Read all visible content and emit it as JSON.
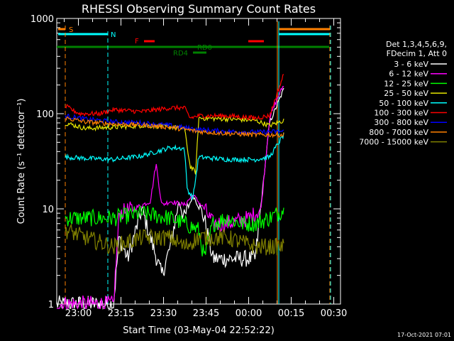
{
  "chart_data": {
    "type": "line",
    "title": "RHESSI Observing Summary Count Rates",
    "xlabel": "Start Time (03-May-04 22:52:22)",
    "ylabel": "Count Rate (s⁻¹ detector⁻¹)",
    "yscale": "log",
    "ylim": [
      1,
      1000
    ],
    "xlim_minutes_from_22:52:22": [
      0,
      100
    ],
    "x_ticks": [
      "23:00",
      "23:15",
      "23:30",
      "23:45",
      "00:00",
      "00:15",
      "00:30"
    ],
    "y_ticks": [
      "1",
      "10",
      "100",
      "1000"
    ],
    "legend_header": [
      "Det 1,3,4,5,6,9,",
      "FDecim 1, Att 0"
    ],
    "legend_position": "right",
    "footer_date": "17-Oct-2021 07:01",
    "flags": [
      {
        "label": "S",
        "color": "#ff8000"
      },
      {
        "label": "N",
        "color": "#00ffff"
      },
      {
        "label": "F",
        "color": "#ff0000"
      },
      {
        "label": "RD0",
        "color": "#008000"
      },
      {
        "label": "RD4",
        "color": "#008000"
      }
    ],
    "series": [
      {
        "name": "3 - 6 keV",
        "color": "#ffffff",
        "approx_points": [
          [
            0,
            1
          ],
          [
            20,
            1
          ],
          [
            22,
            5
          ],
          [
            25,
            3
          ],
          [
            30,
            10
          ],
          [
            33,
            5
          ],
          [
            37,
            2
          ],
          [
            40,
            4
          ],
          [
            43,
            12
          ],
          [
            45,
            8
          ],
          [
            48,
            14
          ],
          [
            52,
            8
          ],
          [
            55,
            3
          ],
          [
            60,
            3
          ],
          [
            65,
            3
          ],
          [
            70,
            3
          ],
          [
            75,
            80
          ],
          [
            78,
            130
          ],
          [
            80,
            180
          ]
        ]
      },
      {
        "name": "6 - 12 keV",
        "color": "#ff00ff",
        "approx_points": [
          [
            0,
            1
          ],
          [
            20,
            1
          ],
          [
            22,
            9
          ],
          [
            27,
            10
          ],
          [
            33,
            12
          ],
          [
            35,
            30
          ],
          [
            37,
            11
          ],
          [
            40,
            12
          ],
          [
            45,
            11
          ],
          [
            48,
            14
          ],
          [
            52,
            10
          ],
          [
            55,
            7
          ],
          [
            60,
            7
          ],
          [
            68,
            8
          ],
          [
            72,
            10
          ],
          [
            75,
            90
          ],
          [
            78,
            150
          ],
          [
            80,
            200
          ]
        ]
      },
      {
        "name": "12 - 25 keV",
        "color": "#00ff00",
        "approx_points": [
          [
            3,
            8
          ],
          [
            10,
            8
          ],
          [
            20,
            8
          ],
          [
            30,
            9
          ],
          [
            40,
            8
          ],
          [
            45,
            7
          ],
          [
            50,
            6
          ],
          [
            52,
            3
          ],
          [
            55,
            7
          ],
          [
            60,
            8
          ],
          [
            65,
            7
          ],
          [
            70,
            7
          ],
          [
            75,
            8
          ],
          [
            78,
            9
          ],
          [
            80,
            10
          ]
        ]
      },
      {
        "name": "25 - 50 keV",
        "color": "#e6e600",
        "approx_points": [
          [
            3,
            80
          ],
          [
            10,
            70
          ],
          [
            20,
            72
          ],
          [
            30,
            75
          ],
          [
            40,
            73
          ],
          [
            45,
            70
          ],
          [
            47,
            28
          ],
          [
            49,
            24
          ],
          [
            50,
            90
          ],
          [
            60,
            88
          ],
          [
            70,
            85
          ],
          [
            75,
            75
          ],
          [
            80,
            85
          ]
        ]
      },
      {
        "name": "50 - 100 keV",
        "color": "#00ffff",
        "approx_points": [
          [
            3,
            35
          ],
          [
            10,
            34
          ],
          [
            20,
            33
          ],
          [
            30,
            36
          ],
          [
            40,
            44
          ],
          [
            45,
            43
          ],
          [
            46,
            16
          ],
          [
            48,
            13
          ],
          [
            50,
            35
          ],
          [
            60,
            33
          ],
          [
            70,
            33
          ],
          [
            75,
            35
          ],
          [
            80,
            60
          ]
        ]
      },
      {
        "name": "100 - 300 keV",
        "color": "#ff0000",
        "approx_points": [
          [
            3,
            120
          ],
          [
            8,
            100
          ],
          [
            15,
            100
          ],
          [
            20,
            110
          ],
          [
            30,
            105
          ],
          [
            35,
            110
          ],
          [
            40,
            115
          ],
          [
            45,
            115
          ],
          [
            47,
            90
          ],
          [
            50,
            95
          ],
          [
            60,
            95
          ],
          [
            70,
            90
          ],
          [
            75,
            95
          ],
          [
            80,
            260
          ]
        ]
      },
      {
        "name": "300 - 800 keV",
        "color": "#0000ff",
        "approx_points": [
          [
            3,
            95
          ],
          [
            10,
            88
          ],
          [
            20,
            82
          ],
          [
            30,
            80
          ],
          [
            40,
            75
          ],
          [
            50,
            68
          ],
          [
            60,
            65
          ],
          [
            70,
            64
          ],
          [
            80,
            65
          ]
        ]
      },
      {
        "name": "800 - 7000 keV",
        "color": "#ff8000",
        "approx_points": [
          [
            3,
            90
          ],
          [
            10,
            82
          ],
          [
            20,
            78
          ],
          [
            30,
            76
          ],
          [
            40,
            72
          ],
          [
            50,
            65
          ],
          [
            60,
            62
          ],
          [
            70,
            60
          ],
          [
            80,
            60
          ]
        ]
      },
      {
        "name": "7000 - 15000 keV",
        "color": "#808000",
        "approx_points": [
          [
            3,
            6
          ],
          [
            10,
            5
          ],
          [
            20,
            4
          ],
          [
            30,
            5
          ],
          [
            40,
            5
          ],
          [
            45,
            4
          ],
          [
            50,
            5
          ],
          [
            60,
            5
          ],
          [
            70,
            4
          ],
          [
            75,
            4
          ],
          [
            80,
            4
          ]
        ]
      }
    ]
  }
}
